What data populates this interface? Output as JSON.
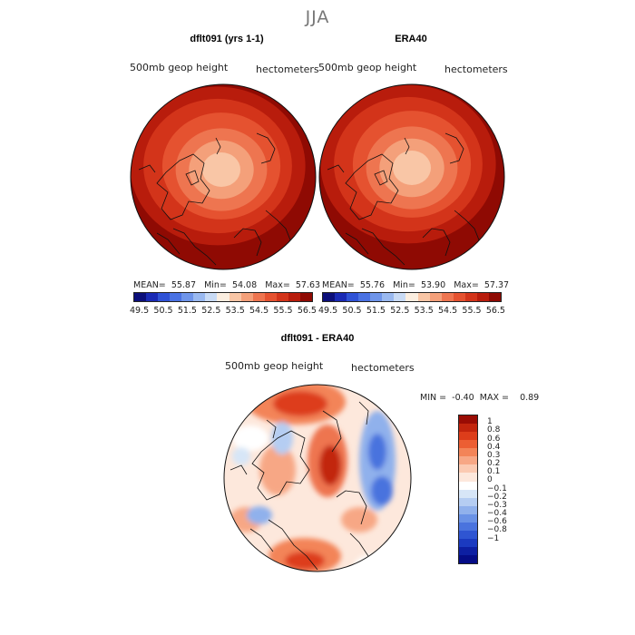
{
  "figure_title": "JJA",
  "panels": [
    {
      "title": "dflt091 (yrs 1-1)",
      "variable_label": "500mb geop height",
      "units_label": "hectometers",
      "stats": {
        "mean_label": "MEAN=",
        "mean": "55.87",
        "min_label": "Min=",
        "min": "54.08",
        "max_label": "Max=",
        "max": "57.63"
      }
    },
    {
      "title": "ERA40",
      "variable_label": "500mb geop height",
      "units_label": "hectometers",
      "stats": {
        "mean_label": "MEAN=",
        "mean": "55.76",
        "min_label": "Min=",
        "min": "53.90",
        "max_label": "Max=",
        "max": "57.37"
      }
    },
    {
      "title": "dflt091 - ERA40",
      "variable_label": "500mb geop height",
      "units_label": "hectometers",
      "stats": {
        "min_label": "MIN =",
        "min": "-0.40",
        "max_label": "MAX =",
        "max": "0.89"
      }
    }
  ],
  "colorbar_height": {
    "colors": [
      "#0c0f7a",
      "#1a2ab5",
      "#2f52d6",
      "#4a72e3",
      "#6f95ea",
      "#9ab9f0",
      "#c9dbf5",
      "#fbeee0",
      "#f9c6a6",
      "#f4a07a",
      "#ee7550",
      "#e55230",
      "#d3341a",
      "#b81c0c",
      "#8f0a03"
    ],
    "tick_labels": [
      "49.5",
      "50.5",
      "51.5",
      "52.5",
      "53.5",
      "54.5",
      "55.5",
      "56.5"
    ]
  },
  "colorbar_diff": {
    "colors": [
      "#9a0c04",
      "#c2250d",
      "#dd3d1a",
      "#ec5e33",
      "#f38458",
      "#f7a785",
      "#fbcab2",
      "#fde8dc",
      "#ffffff",
      "#d7e6f7",
      "#b5cdf2",
      "#90b1ec",
      "#6a92e6",
      "#4a73de",
      "#2f55d2",
      "#1b3ac0",
      "#0d1fa2",
      "#050c86"
    ],
    "tick_labels": [
      "1",
      "0.8",
      "0.6",
      "0.4",
      "0.3",
      "0.2",
      "0.1",
      "0",
      "−0.1",
      "−0.2",
      "−0.3",
      "−0.4",
      "−0.6",
      "−0.8",
      "−1"
    ]
  },
  "map_fields": {
    "panel1": {
      "bands": [
        "#8f0a03",
        "#b81c0c",
        "#d3341a",
        "#e55230",
        "#ee7550",
        "#f4a07a",
        "#f9c6a6"
      ],
      "center_offset": [
        -6,
        -12
      ]
    },
    "panel2": {
      "bands": [
        "#8f0a03",
        "#b81c0c",
        "#d3341a",
        "#e55230",
        "#ee7550",
        "#f4a07a",
        "#f9c6a6"
      ],
      "center_offset": [
        -4,
        -14
      ]
    },
    "diff": {
      "background": "#fde8dc"
    }
  }
}
